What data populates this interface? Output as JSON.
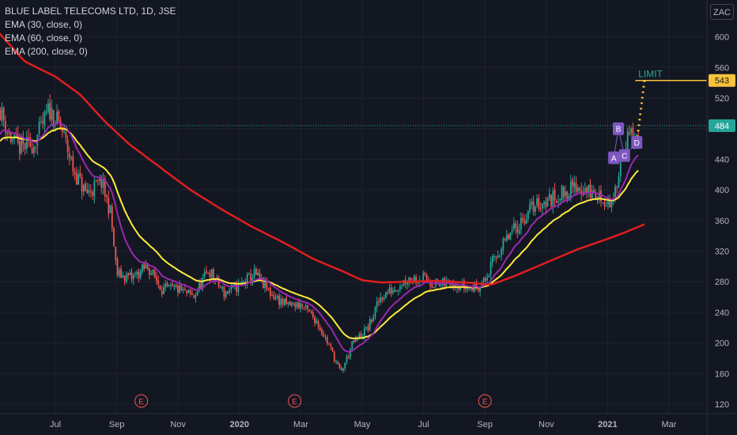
{
  "legend": {
    "title": "BLUE LABEL TELECOMS LTD, 1D, JSE",
    "ema30": "EMA (30, close, 0)",
    "ema60": "EMA (60, close, 0)",
    "ema200": "EMA (200, close, 0)"
  },
  "currency": "ZAC",
  "colors": {
    "background": "#131722",
    "up_candle": "#26a69a",
    "down_candle": "#ef5350",
    "ema30": "#9c27b0",
    "ema60": "#ffeb3b",
    "ema200": "#e01e1e",
    "last_price": "#26a69a",
    "limit": "#f9c23c",
    "annotation": "#7e57c2"
  },
  "chart_data": {
    "type": "candlestick",
    "symbol": "BLUE LABEL TELECOMS LTD",
    "interval": "1D",
    "exchange": "JSE",
    "y_axis": {
      "ticks": [
        120,
        160,
        200,
        240,
        280,
        320,
        360,
        400,
        440,
        480,
        520,
        560,
        600
      ],
      "range": [
        110,
        640
      ]
    },
    "x_axis": {
      "ticks": [
        {
          "label": "Jul",
          "t": 0
        },
        {
          "label": "Sep",
          "t": 2
        },
        {
          "label": "Nov",
          "t": 4
        },
        {
          "label": "2020",
          "t": 6
        },
        {
          "label": "Mar",
          "t": 8
        },
        {
          "label": "May",
          "t": 10
        },
        {
          "label": "Jul",
          "t": 12
        },
        {
          "label": "Sep",
          "t": 14
        },
        {
          "label": "Nov",
          "t": 16
        },
        {
          "label": "2021",
          "t": 18
        },
        {
          "label": "Mar",
          "t": 20
        }
      ]
    },
    "price_anchors": [
      [
        -1.8,
        505
      ],
      [
        -1.5,
        470
      ],
      [
        -1.2,
        455
      ],
      [
        -0.7,
        460
      ],
      [
        -0.2,
        505
      ],
      [
        0.2,
        480
      ],
      [
        0.6,
        425
      ],
      [
        1.0,
        395
      ],
      [
        1.5,
        410
      ],
      [
        1.8,
        370
      ],
      [
        2.0,
        290
      ],
      [
        2.5,
        285
      ],
      [
        3.0,
        300
      ],
      [
        3.5,
        270
      ],
      [
        4.0,
        270
      ],
      [
        4.5,
        260
      ],
      [
        5.0,
        295
      ],
      [
        5.5,
        265
      ],
      [
        6.0,
        275
      ],
      [
        6.5,
        290
      ],
      [
        7.0,
        265
      ],
      [
        7.5,
        250
      ],
      [
        8.0,
        250
      ],
      [
        8.5,
        230
      ],
      [
        9.0,
        190
      ],
      [
        9.3,
        160
      ],
      [
        9.7,
        200
      ],
      [
        10.2,
        220
      ],
      [
        10.6,
        260
      ],
      [
        11.0,
        270
      ],
      [
        11.5,
        285
      ],
      [
        12.0,
        285
      ],
      [
        12.5,
        275
      ],
      [
        13.0,
        280
      ],
      [
        13.5,
        270
      ],
      [
        14.0,
        280
      ],
      [
        14.3,
        310
      ],
      [
        14.8,
        340
      ],
      [
        15.2,
        360
      ],
      [
        15.6,
        380
      ],
      [
        16.0,
        385
      ],
      [
        16.5,
        395
      ],
      [
        17.0,
        405
      ],
      [
        17.5,
        395
      ],
      [
        18.0,
        385
      ],
      [
        18.2,
        380
      ],
      [
        18.4,
        440
      ],
      [
        18.7,
        470
      ],
      [
        19.0,
        465
      ]
    ],
    "ema200_anchors": [
      [
        -1.9,
        608
      ],
      [
        -1.0,
        568
      ],
      [
        0.0,
        548
      ],
      [
        0.8,
        525
      ],
      [
        1.6,
        490
      ],
      [
        2.4,
        460
      ],
      [
        3.4,
        430
      ],
      [
        4.4,
        400
      ],
      [
        5.4,
        375
      ],
      [
        6.4,
        352
      ],
      [
        7.4,
        332
      ],
      [
        8.4,
        310
      ],
      [
        9.4,
        293
      ],
      [
        10.0,
        282
      ],
      [
        10.6,
        279
      ],
      [
        11.4,
        280
      ],
      [
        12.4,
        281
      ],
      [
        13.4,
        279
      ],
      [
        14.2,
        276
      ],
      [
        15.0,
        288
      ],
      [
        16.0,
        305
      ],
      [
        17.0,
        322
      ],
      [
        18.0,
        336
      ],
      [
        18.6,
        345
      ],
      [
        19.2,
        355
      ]
    ],
    "series": [
      {
        "name": "EMA (30, close, 0)",
        "period": 30
      },
      {
        "name": "EMA (60, close, 0)",
        "period": 60
      },
      {
        "name": "EMA (200, close, 0)",
        "period": 200
      }
    ],
    "last_price": 484,
    "limit": {
      "label": "LIMIT",
      "price": 543
    },
    "pattern_points": [
      {
        "label": "A",
        "t": 18.2,
        "price": 442
      },
      {
        "label": "B",
        "t": 18.35,
        "price": 480
      },
      {
        "label": "C",
        "t": 18.55,
        "price": 445
      },
      {
        "label": "D",
        "t": 18.95,
        "price": 462
      }
    ],
    "earnings_markers": [
      {
        "label": "E",
        "t": 2.8
      },
      {
        "label": "E",
        "t": 7.8
      },
      {
        "label": "E",
        "t": 14.0
      }
    ]
  }
}
